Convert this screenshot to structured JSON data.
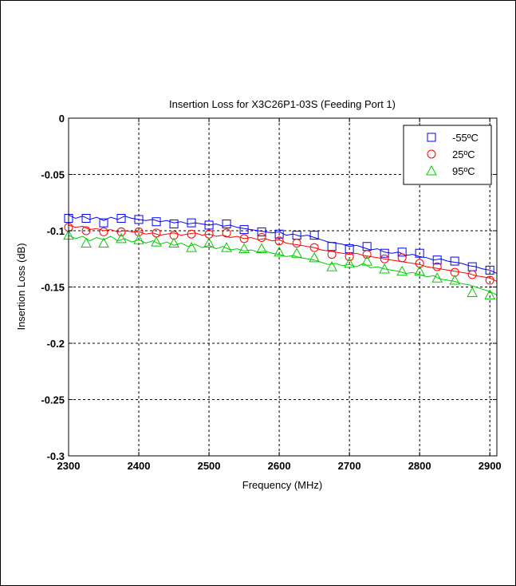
{
  "chart_data": {
    "type": "line",
    "title": "Insertion Loss for X3C26P1-03S (Feeding Port 1)",
    "xlabel": "Frequency (MHz)",
    "ylabel": "Insertion Loss (dB)",
    "xlim": [
      2300,
      2910
    ],
    "ylim": [
      -0.3,
      0
    ],
    "xticks": [
      2300,
      2400,
      2500,
      2600,
      2700,
      2800,
      2900
    ],
    "xtick_labels": [
      "2300",
      "2400",
      "2500",
      "2600",
      "2700",
      "2800",
      "2900"
    ],
    "yticks": [
      0,
      -0.05,
      -0.1,
      -0.15,
      -0.2,
      -0.25,
      -0.3
    ],
    "ytick_labels": [
      "0",
      "-0.05",
      "-0.1",
      "-0.15",
      "-0.2",
      "-0.25",
      "-0.3"
    ],
    "grid": true,
    "legend_position": "top-right",
    "series": [
      {
        "name": "-55ºC",
        "color": "#0000ff",
        "marker": "square",
        "line_x": [
          2300,
          2310,
          2320,
          2330,
          2340,
          2350,
          2360,
          2370,
          2380,
          2390,
          2400,
          2410,
          2420,
          2430,
          2440,
          2450,
          2460,
          2470,
          2480,
          2490,
          2500,
          2510,
          2520,
          2530,
          2540,
          2550,
          2560,
          2570,
          2580,
          2590,
          2600,
          2610,
          2620,
          2630,
          2640,
          2650,
          2660,
          2670,
          2680,
          2690,
          2700,
          2710,
          2720,
          2730,
          2740,
          2750,
          2760,
          2770,
          2780,
          2790,
          2800,
          2810,
          2820,
          2830,
          2840,
          2850,
          2860,
          2870,
          2880,
          2890,
          2900,
          2910
        ],
        "line_y": [
          -0.086,
          -0.089,
          -0.087,
          -0.09,
          -0.088,
          -0.091,
          -0.088,
          -0.09,
          -0.087,
          -0.089,
          -0.09,
          -0.091,
          -0.09,
          -0.092,
          -0.091,
          -0.093,
          -0.092,
          -0.094,
          -0.093,
          -0.094,
          -0.095,
          -0.094,
          -0.096,
          -0.095,
          -0.097,
          -0.098,
          -0.099,
          -0.1,
          -0.101,
          -0.102,
          -0.101,
          -0.104,
          -0.103,
          -0.105,
          -0.104,
          -0.106,
          -0.108,
          -0.11,
          -0.111,
          -0.112,
          -0.114,
          -0.113,
          -0.115,
          -0.117,
          -0.116,
          -0.119,
          -0.12,
          -0.119,
          -0.122,
          -0.121,
          -0.123,
          -0.124,
          -0.126,
          -0.125,
          -0.127,
          -0.128,
          -0.129,
          -0.131,
          -0.132,
          -0.134,
          -0.135,
          -0.138
        ],
        "marker_x": [
          2300,
          2325,
          2350,
          2375,
          2400,
          2425,
          2450,
          2475,
          2500,
          2525,
          2550,
          2575,
          2600,
          2625,
          2650,
          2675,
          2700,
          2725,
          2750,
          2775,
          2800,
          2825,
          2850,
          2875,
          2900
        ],
        "marker_y": [
          -0.089,
          -0.089,
          -0.093,
          -0.089,
          -0.09,
          -0.092,
          -0.094,
          -0.093,
          -0.095,
          -0.094,
          -0.099,
          -0.101,
          -0.103,
          -0.104,
          -0.104,
          -0.114,
          -0.116,
          -0.114,
          -0.12,
          -0.119,
          -0.12,
          -0.126,
          -0.127,
          -0.132,
          -0.135
        ]
      },
      {
        "name": "25ºC",
        "color": "#ff0000",
        "marker": "circle",
        "line_x": [
          2300,
          2310,
          2320,
          2330,
          2340,
          2350,
          2360,
          2370,
          2380,
          2390,
          2400,
          2410,
          2420,
          2430,
          2440,
          2450,
          2460,
          2470,
          2480,
          2490,
          2500,
          2510,
          2520,
          2530,
          2540,
          2550,
          2560,
          2570,
          2580,
          2590,
          2600,
          2610,
          2620,
          2630,
          2640,
          2650,
          2660,
          2670,
          2680,
          2690,
          2700,
          2710,
          2720,
          2730,
          2740,
          2750,
          2760,
          2770,
          2780,
          2790,
          2800,
          2810,
          2820,
          2830,
          2840,
          2850,
          2860,
          2870,
          2880,
          2890,
          2900,
          2910
        ],
        "line_y": [
          -0.095,
          -0.097,
          -0.096,
          -0.099,
          -0.098,
          -0.1,
          -0.099,
          -0.101,
          -0.1,
          -0.101,
          -0.101,
          -0.103,
          -0.102,
          -0.104,
          -0.103,
          -0.102,
          -0.104,
          -0.103,
          -0.102,
          -0.104,
          -0.103,
          -0.105,
          -0.104,
          -0.106,
          -0.105,
          -0.107,
          -0.106,
          -0.108,
          -0.107,
          -0.109,
          -0.108,
          -0.111,
          -0.112,
          -0.113,
          -0.114,
          -0.115,
          -0.117,
          -0.118,
          -0.119,
          -0.12,
          -0.121,
          -0.12,
          -0.122,
          -0.123,
          -0.124,
          -0.125,
          -0.126,
          -0.127,
          -0.128,
          -0.129,
          -0.13,
          -0.132,
          -0.133,
          -0.134,
          -0.135,
          -0.136,
          -0.137,
          -0.138,
          -0.14,
          -0.141,
          -0.142,
          -0.145
        ],
        "marker_x": [
          2300,
          2325,
          2350,
          2375,
          2400,
          2425,
          2450,
          2475,
          2500,
          2525,
          2550,
          2575,
          2600,
          2625,
          2650,
          2675,
          2700,
          2725,
          2750,
          2775,
          2800,
          2825,
          2850,
          2875,
          2900
        ],
        "marker_y": [
          -0.097,
          -0.1,
          -0.101,
          -0.101,
          -0.101,
          -0.102,
          -0.104,
          -0.103,
          -0.103,
          -0.102,
          -0.107,
          -0.106,
          -0.109,
          -0.111,
          -0.115,
          -0.121,
          -0.123,
          -0.121,
          -0.125,
          -0.124,
          -0.129,
          -0.132,
          -0.137,
          -0.139,
          -0.144
        ]
      },
      {
        "name": "95ºC",
        "color": "#00cc00",
        "marker": "triangle",
        "line_x": [
          2300,
          2310,
          2320,
          2330,
          2340,
          2350,
          2360,
          2370,
          2380,
          2390,
          2400,
          2410,
          2420,
          2430,
          2440,
          2450,
          2460,
          2470,
          2480,
          2490,
          2500,
          2510,
          2520,
          2530,
          2540,
          2550,
          2560,
          2570,
          2580,
          2590,
          2600,
          2610,
          2620,
          2630,
          2640,
          2650,
          2660,
          2670,
          2680,
          2690,
          2700,
          2710,
          2720,
          2730,
          2740,
          2750,
          2760,
          2770,
          2780,
          2790,
          2800,
          2810,
          2820,
          2830,
          2840,
          2850,
          2860,
          2870,
          2880,
          2890,
          2900,
          2910
        ],
        "line_y": [
          -0.104,
          -0.107,
          -0.105,
          -0.109,
          -0.106,
          -0.108,
          -0.105,
          -0.109,
          -0.107,
          -0.11,
          -0.108,
          -0.111,
          -0.109,
          -0.112,
          -0.11,
          -0.113,
          -0.111,
          -0.114,
          -0.112,
          -0.115,
          -0.113,
          -0.116,
          -0.114,
          -0.117,
          -0.116,
          -0.118,
          -0.117,
          -0.119,
          -0.118,
          -0.12,
          -0.121,
          -0.123,
          -0.122,
          -0.124,
          -0.125,
          -0.126,
          -0.128,
          -0.13,
          -0.129,
          -0.131,
          -0.13,
          -0.132,
          -0.129,
          -0.133,
          -0.132,
          -0.134,
          -0.135,
          -0.136,
          -0.138,
          -0.137,
          -0.139,
          -0.141,
          -0.14,
          -0.143,
          -0.144,
          -0.145,
          -0.147,
          -0.148,
          -0.15,
          -0.152,
          -0.154,
          -0.157
        ],
        "marker_x": [
          2300,
          2325,
          2350,
          2375,
          2400,
          2425,
          2450,
          2475,
          2500,
          2525,
          2550,
          2575,
          2600,
          2625,
          2650,
          2675,
          2700,
          2725,
          2750,
          2775,
          2800,
          2825,
          2850,
          2875,
          2900
        ],
        "marker_y": [
          -0.104,
          -0.111,
          -0.111,
          -0.107,
          -0.108,
          -0.11,
          -0.111,
          -0.115,
          -0.111,
          -0.115,
          -0.116,
          -0.116,
          -0.119,
          -0.12,
          -0.124,
          -0.132,
          -0.129,
          -0.127,
          -0.134,
          -0.136,
          -0.136,
          -0.142,
          -0.144,
          -0.155,
          -0.157
        ]
      }
    ]
  }
}
